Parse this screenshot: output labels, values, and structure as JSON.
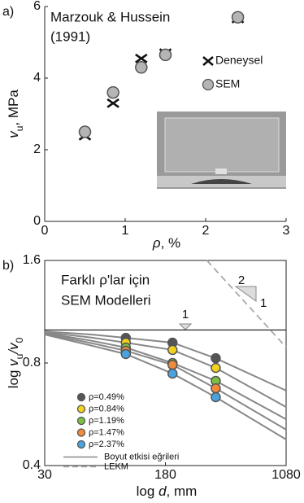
{
  "chart_data": [
    {
      "type": "scatter",
      "panel_label": "a)",
      "title": [
        "Marzouk & Hussein",
        "(1991)"
      ],
      "xlabel": [
        "ρ",
        ", %"
      ],
      "ylabel": [
        "v",
        "u",
        ", MPa"
      ],
      "xlim": [
        0,
        3
      ],
      "xticks": [
        0,
        1,
        2,
        3
      ],
      "ylim": [
        0,
        6
      ],
      "yticks": [
        0,
        2,
        4,
        6
      ],
      "series": [
        {
          "name": "Deneysel",
          "marker": "x",
          "color": "#111111",
          "x": [
            0.5,
            0.85,
            1.2,
            1.5,
            2.4
          ],
          "values": [
            2.39,
            3.3,
            4.55,
            4.7,
            5.66
          ]
        },
        {
          "name": "SEM",
          "marker": "circle",
          "color": "#b5b5b5",
          "x": [
            0.5,
            0.85,
            1.2,
            1.5,
            2.4
          ],
          "values": [
            2.5,
            3.6,
            4.3,
            4.65,
            5.7
          ]
        }
      ]
    },
    {
      "type": "scatter",
      "panel_label": "b)",
      "title": [
        "Farklı ρ'lar için",
        "SEM Modelleri"
      ],
      "xlabel": [
        "log ",
        "d",
        ", mm"
      ],
      "ylabel": [
        "log ",
        "v",
        "u",
        "/v",
        "0"
      ],
      "xscale": "log",
      "yscale": "log",
      "xlim": [
        30,
        1080
      ],
      "xticks": [
        30,
        180,
        1080
      ],
      "ylim": [
        0.4,
        1.6
      ],
      "yticks": [
        0.4,
        0.8,
        1.6
      ],
      "series": [
        {
          "name": "ρ=0.49%",
          "marker": "circle",
          "color": "#555555",
          "x": [
            100,
            200,
            380
          ],
          "values": [
            0.948,
            0.918,
            0.826
          ]
        },
        {
          "name": "ρ=0.84%",
          "marker": "circle",
          "color": "#f2d21b",
          "x": [
            100,
            200,
            380
          ],
          "values": [
            0.918,
            0.874,
            0.774
          ]
        },
        {
          "name": "ρ=1.19%",
          "marker": "circle",
          "color": "#7ac142",
          "x": [
            100,
            200,
            380
          ],
          "values": [
            0.888,
            0.8,
            0.709
          ]
        },
        {
          "name": "ρ=1.47%",
          "marker": "circle",
          "color": "#f08a3c",
          "x": [
            100,
            200,
            380
          ],
          "values": [
            0.869,
            0.79,
            0.674
          ]
        },
        {
          "name": "ρ=2.37%",
          "marker": "circle",
          "color": "#4aa3df",
          "x": [
            100,
            200,
            380
          ],
          "values": [
            0.85,
            0.745,
            0.635
          ]
        }
      ],
      "curves": {
        "name": "Boyut etkisi eğrileri",
        "color": "#888888",
        "x": [
          30,
          60,
          100,
          200,
          380,
          1080
        ],
        "lines": [
          [
            0.99,
            0.97,
            0.948,
            0.918,
            0.826,
            0.664
          ],
          [
            0.985,
            0.95,
            0.918,
            0.874,
            0.774,
            0.594
          ],
          [
            0.98,
            0.93,
            0.888,
            0.8,
            0.709,
            0.547
          ],
          [
            0.975,
            0.915,
            0.869,
            0.79,
            0.674,
            0.51
          ],
          [
            0.97,
            0.9,
            0.85,
            0.745,
            0.635,
            0.477
          ]
        ]
      },
      "lekm": {
        "name": "LEKM",
        "color": "#aaaaaa",
        "x": [
          333,
          1080
        ],
        "values": [
          1.6,
          0.89
        ]
      },
      "hline": 1,
      "annotations": [
        "1",
        "2",
        "1"
      ]
    }
  ]
}
